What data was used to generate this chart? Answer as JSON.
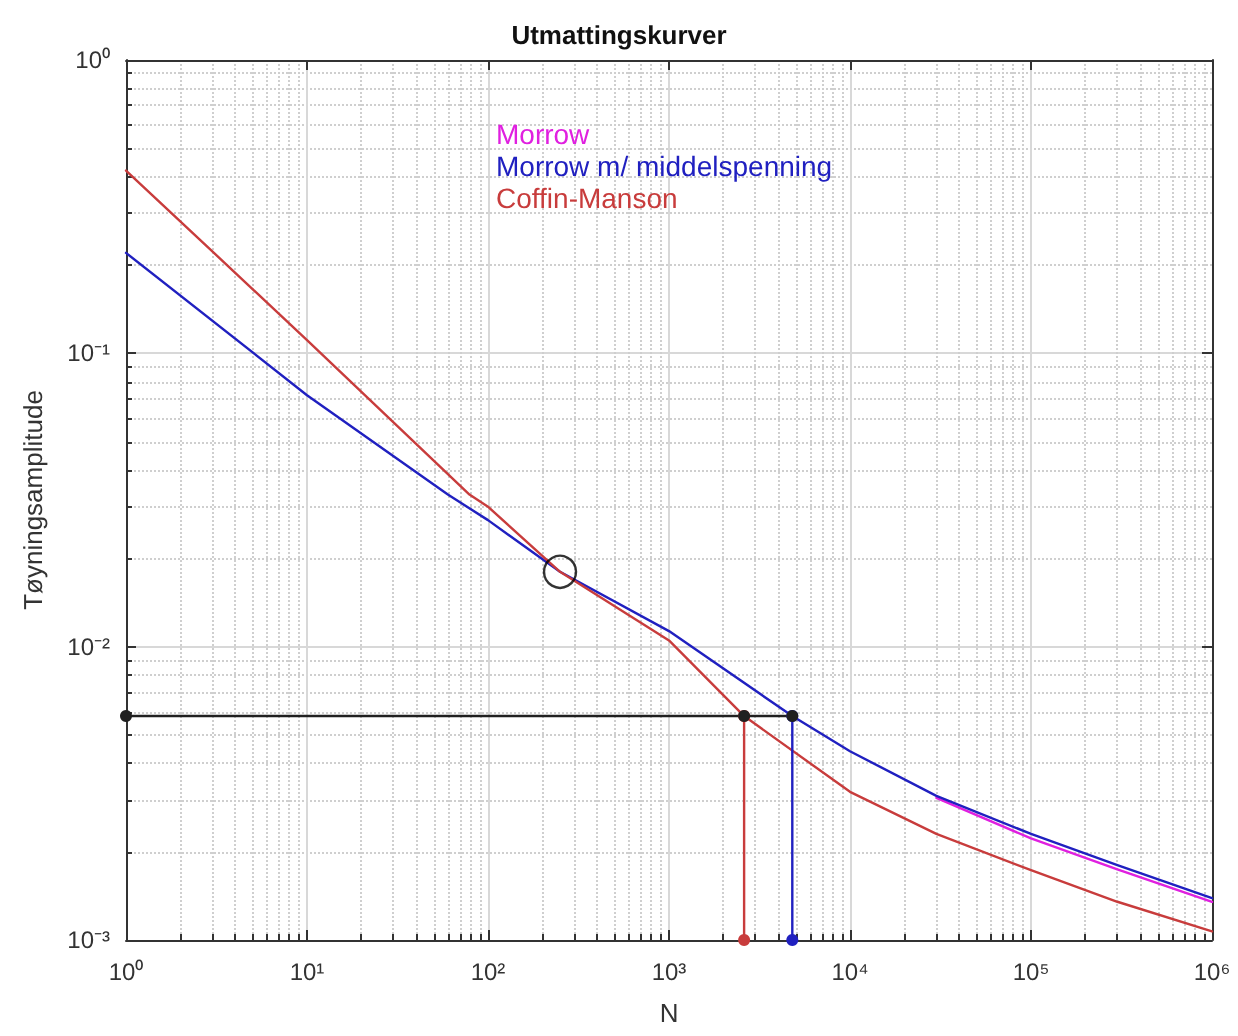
{
  "chart_data": {
    "type": "line",
    "title": "Utmattingskurver",
    "xlabel": "N",
    "ylabel": "Tøyningsamplitude",
    "log": "xy",
    "grid": true,
    "legend": "top",
    "line_style": "solid",
    "xlim": [
      1,
      1000000
    ],
    "ylim": [
      0.001,
      1
    ],
    "xticks": [
      {
        "value": 1,
        "label": "10⁰"
      },
      {
        "value": 10,
        "label": "10¹"
      },
      {
        "value": 100,
        "label": "10²"
      },
      {
        "value": 1000,
        "label": "10³"
      },
      {
        "value": 10000,
        "label": "10⁴"
      },
      {
        "value": 100000,
        "label": "10⁵"
      },
      {
        "value": 1000000,
        "label": "10⁶"
      }
    ],
    "yticks": [
      {
        "value": 0.001,
        "label": "10⁻³"
      },
      {
        "value": 0.01,
        "label": "10⁻²"
      },
      {
        "value": 0.1,
        "label": "10⁻¹"
      },
      {
        "value": 1,
        "label": "10⁰"
      }
    ],
    "series": [
      {
        "name": "Morrow",
        "color": "#e020e0",
        "marker": "none",
        "x": [
          30000,
          100000,
          300000,
          1000000
        ],
        "values": [
          0.00305,
          0.00222,
          0.00174,
          0.00135
        ]
      },
      {
        "name": "Morrow m/ middelspenning",
        "color": "#2020c0",
        "marker": "none",
        "x": [
          1,
          10,
          60,
          100,
          250,
          1000,
          4800,
          10000,
          30000,
          100000,
          300000,
          1000000
        ],
        "values": [
          0.22,
          0.072,
          0.033,
          0.027,
          0.018,
          0.0113,
          0.0058,
          0.0044,
          0.0031,
          0.0023,
          0.0018,
          0.00139
        ]
      },
      {
        "name": "Coffin-Manson",
        "color": "#c83c3c",
        "marker": "none",
        "x": [
          1,
          10,
          79,
          100,
          250,
          1000,
          2600,
          10000,
          30000,
          100000,
          300000,
          1000000
        ],
        "values": [
          0.42,
          0.111,
          0.033,
          0.03,
          0.018,
          0.0105,
          0.0058,
          0.0032,
          0.0023,
          0.00173,
          0.00135,
          0.00107
        ]
      },
      {
        "color": "#c83c3c",
        "marker": "circle",
        "x": [
          2600,
          2600
        ],
        "values": [
          0.0058,
          0.001
        ]
      },
      {
        "color": "#2020c0",
        "marker": "circle",
        "x": [
          4800,
          4800
        ],
        "values": [
          0.0058,
          0.001
        ]
      },
      {
        "color": "#202020",
        "marker": "circle",
        "x": [
          1,
          2600,
          4800
        ],
        "values": [
          0.0058,
          0.0058,
          0.0058
        ]
      },
      {
        "type": "scatter",
        "color": "#000000",
        "marker": "circle",
        "x": [
          250
        ],
        "values": [
          0.018
        ]
      }
    ]
  }
}
